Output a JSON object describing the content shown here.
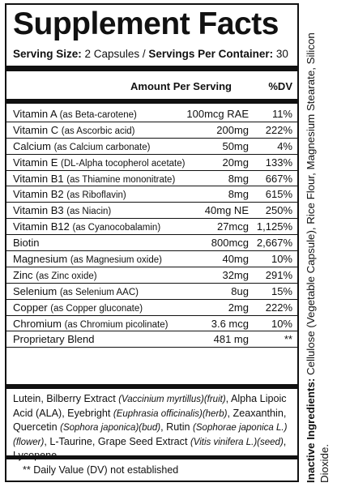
{
  "title": "Supplement Facts",
  "serving": {
    "size_label": "Serving Size:",
    "size_value": " 2 Capsules / ",
    "per_container_label": "Servings Per Container:",
    "per_container_value": " 30"
  },
  "header": {
    "amount": "Amount Per Serving",
    "dv": "%DV"
  },
  "rows": [
    {
      "name": "Vitamin A",
      "source": "(as Beta-carotene)",
      "amount": "100mcg RAE",
      "dv": "11%"
    },
    {
      "name": "Vitamin C",
      "source": "(as Ascorbic acid)",
      "amount": "200mg",
      "dv": "222%"
    },
    {
      "name": "Calcium",
      "source": "(as Calcium carbonate)",
      "amount": "50mg",
      "dv": "4%"
    },
    {
      "name": "Vitamin E",
      "source": "(DL-Alpha tocopherol acetate)",
      "amount": "20mg",
      "dv": "133%"
    },
    {
      "name": "Vitamin B1",
      "source": "(as Thiamine mononitrate)",
      "amount": "8mg",
      "dv": "667%"
    },
    {
      "name": "Vitamin B2",
      "source": "(as Riboflavin)",
      "amount": "8mg",
      "dv": "615%"
    },
    {
      "name": "Vitamin B3",
      "source": "(as Niacin)",
      "amount": "40mg NE",
      "dv": "250%"
    },
    {
      "name": "Vitamin B12",
      "source": "(as Cyanocobalamin)",
      "amount": "27mcg",
      "dv": "1,125%"
    },
    {
      "name": "Biotin",
      "source": "",
      "amount": "800mcg",
      "dv": "2,667%"
    },
    {
      "name": "Magnesium",
      "source": "(as Magnesium oxide)",
      "amount": "40mg",
      "dv": "10%"
    },
    {
      "name": "Zinc",
      "source": "(as Zinc oxide)",
      "amount": "32mg",
      "dv": "291%"
    },
    {
      "name": "Selenium",
      "source": "(as Selenium AAC)",
      "amount": "8ug",
      "dv": "15%"
    },
    {
      "name": "Copper",
      "source": "(as Copper gluconate)",
      "amount": "2mg",
      "dv": "222%"
    },
    {
      "name": "Chromium",
      "source": "(as Chromium picolinate)",
      "amount": "3.6 mcg",
      "dv": "10%"
    },
    {
      "name": "Proprietary Blend",
      "source": "",
      "amount": "481 mg",
      "dv": "**"
    }
  ],
  "blend": {
    "t1": "Lutein, Bilberry Extract ",
    "i1": "(Vaccinium myrtillus)(fruit)",
    "t2": ", Alpha Lipoic Acid (ALA), Eyebright ",
    "i2": "(Euphrasia officinalis)(herb)",
    "t3": ", Zeaxanthin, Quercetin ",
    "i3": "(Sophora japonica)(bud)",
    "t4": ", Rutin ",
    "i4": "(Sophorae japonica L.)(flower)",
    "t5": ", L-Taurine, Grape Seed Extract ",
    "i5": "(Vitis vinifera L.)(seed)",
    "t6": ", Lycopene."
  },
  "footnote": "** Daily Value (DV) not established",
  "inactive": {
    "label": "Inactive Ingredients:",
    "text": " Cellulose (Vegetable Capsule), Rice Flour, Magnesium Stearate, Silicon Dioxide."
  }
}
